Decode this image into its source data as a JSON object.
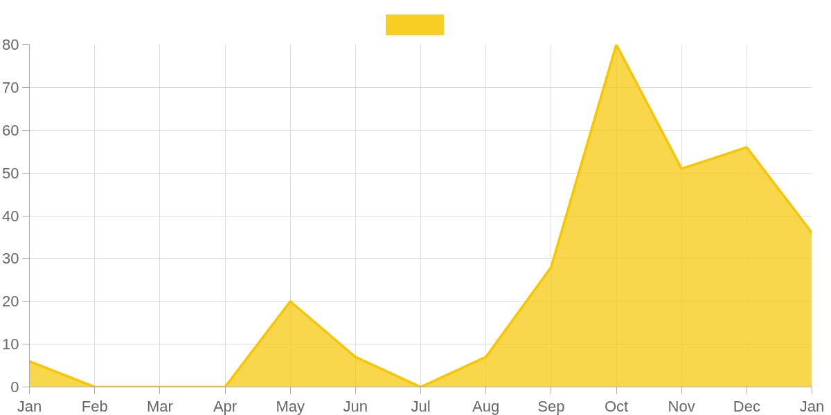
{
  "chart_data": {
    "type": "area",
    "categories": [
      "Jan",
      "Feb",
      "Mar",
      "Apr",
      "May",
      "Jun",
      "Jul",
      "Aug",
      "Sep",
      "Oct",
      "Nov",
      "Dec",
      "Jan"
    ],
    "series": [
      {
        "color": "#f7c600",
        "values": [
          6,
          0,
          0,
          0,
          20,
          7,
          0,
          7,
          28,
          80,
          51,
          56,
          36
        ]
      }
    ],
    "ylim": [
      0,
      80
    ],
    "yticks": [
      0,
      10,
      20,
      30,
      40,
      50,
      60,
      70,
      80
    ],
    "grid": true
  }
}
